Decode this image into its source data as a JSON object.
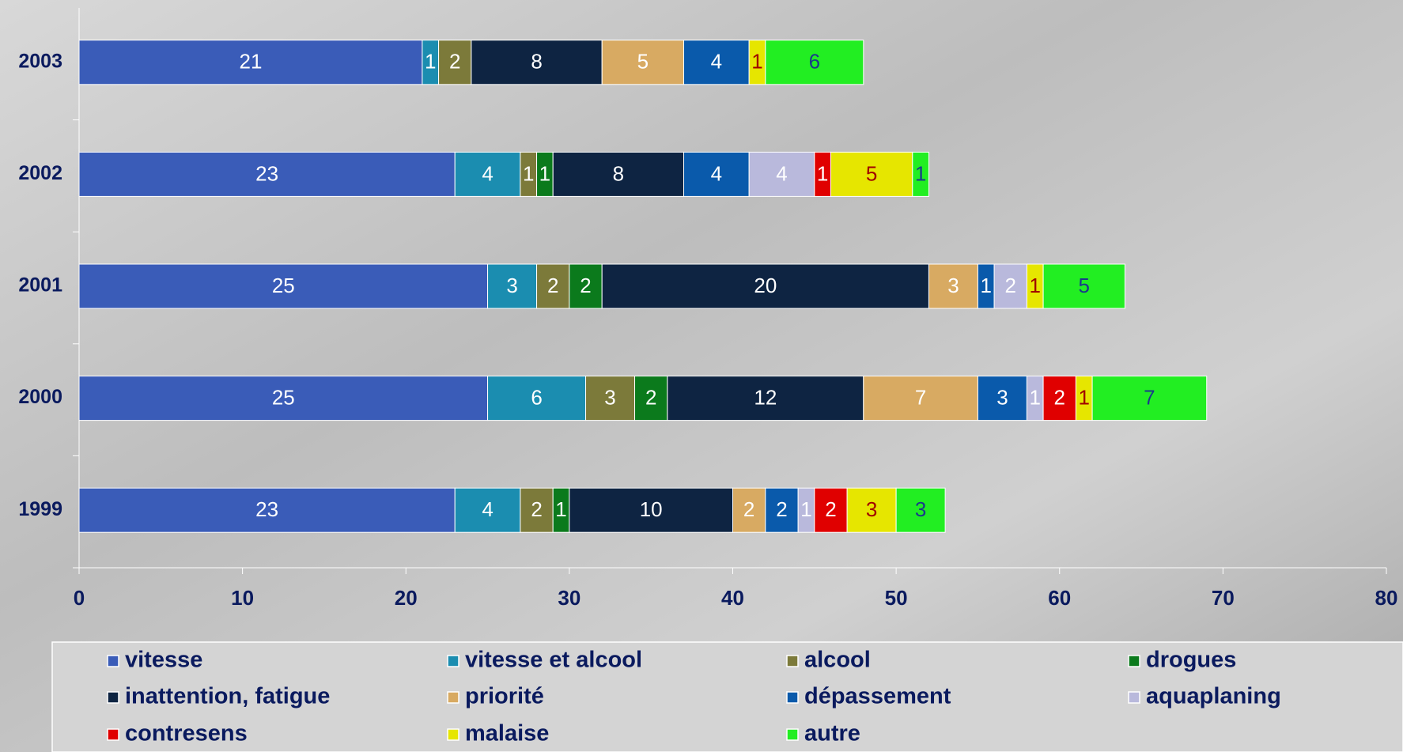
{
  "chart_data": {
    "type": "stacked_bar_horizontal",
    "categories": [
      "1999",
      "2000",
      "2001",
      "2002",
      "2003"
    ],
    "xlim": [
      0,
      80
    ],
    "xticks": [
      0,
      10,
      20,
      30,
      40,
      50,
      60,
      70,
      80
    ],
    "series": [
      {
        "name": "vitesse",
        "color": "#3a5cb8",
        "label_color": "#ffffff",
        "values": [
          23,
          25,
          25,
          23,
          21
        ]
      },
      {
        "name": "vitesse et alcool",
        "color": "#1b8db0",
        "label_color": "#ffffff",
        "values": [
          4,
          6,
          3,
          4,
          1
        ]
      },
      {
        "name": "alcool",
        "color": "#7c7a3a",
        "label_color": "#ffffff",
        "values": [
          2,
          3,
          2,
          1,
          2
        ]
      },
      {
        "name": "drogues",
        "color": "#0b7a1c",
        "label_color": "#ffffff",
        "values": [
          1,
          2,
          2,
          1,
          null
        ]
      },
      {
        "name": "inattention, fatigue",
        "color": "#0e2442",
        "label_color": "#ffffff",
        "values": [
          10,
          12,
          20,
          8,
          8
        ]
      },
      {
        "name": "priorité",
        "color": "#d8aa62",
        "label_color": "#ffffff",
        "values": [
          2,
          7,
          3,
          null,
          5
        ]
      },
      {
        "name": "dépassement",
        "color": "#0a5aab",
        "label_color": "#ffffff",
        "values": [
          2,
          3,
          1,
          4,
          4
        ]
      },
      {
        "name": "aquaplaning",
        "color": "#b9b9dc",
        "label_color": "#ffffff",
        "values": [
          1,
          1,
          2,
          4,
          null
        ]
      },
      {
        "name": "contresens",
        "color": "#e00000",
        "label_color": "#ffffff",
        "values": [
          2,
          2,
          null,
          1,
          null
        ]
      },
      {
        "name": "malaise",
        "color": "#e6e600",
        "label_color": "#a00000",
        "values": [
          3,
          1,
          1,
          5,
          1
        ]
      },
      {
        "name": "autre",
        "color": "#22ee22",
        "label_color": "#1a3a8a",
        "values": [
          3,
          7,
          5,
          1,
          6
        ]
      }
    ]
  }
}
